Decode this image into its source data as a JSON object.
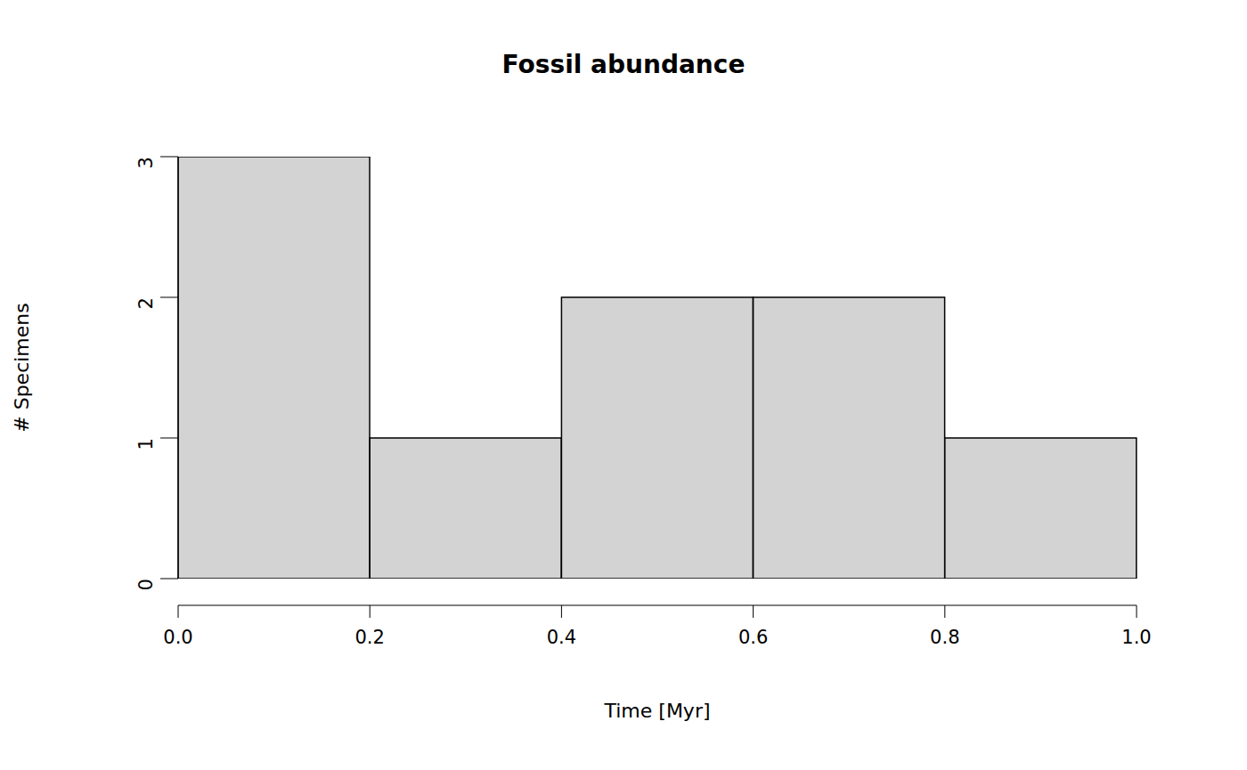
{
  "chart_data": {
    "type": "histogram",
    "title": "Fossil abundance",
    "x_label": "Time [Myr]",
    "y_label": "# Specimens",
    "bins": [
      0,
      0.2,
      0.4,
      0.6,
      0.8,
      1.0
    ],
    "values": [
      3,
      1,
      2,
      2,
      1
    ],
    "color": "#d3d3d3",
    "xlim": [
      0,
      1
    ],
    "xticks": [
      {
        "value": 0,
        "label": "0.0"
      },
      0.2,
      0.4,
      0.6,
      0.8,
      {
        "value": 1,
        "label": "1.0"
      }
    ],
    "ylim": [
      0,
      3
    ],
    "yticks": [
      0,
      1,
      2,
      3
    ],
    "grid": false
  }
}
